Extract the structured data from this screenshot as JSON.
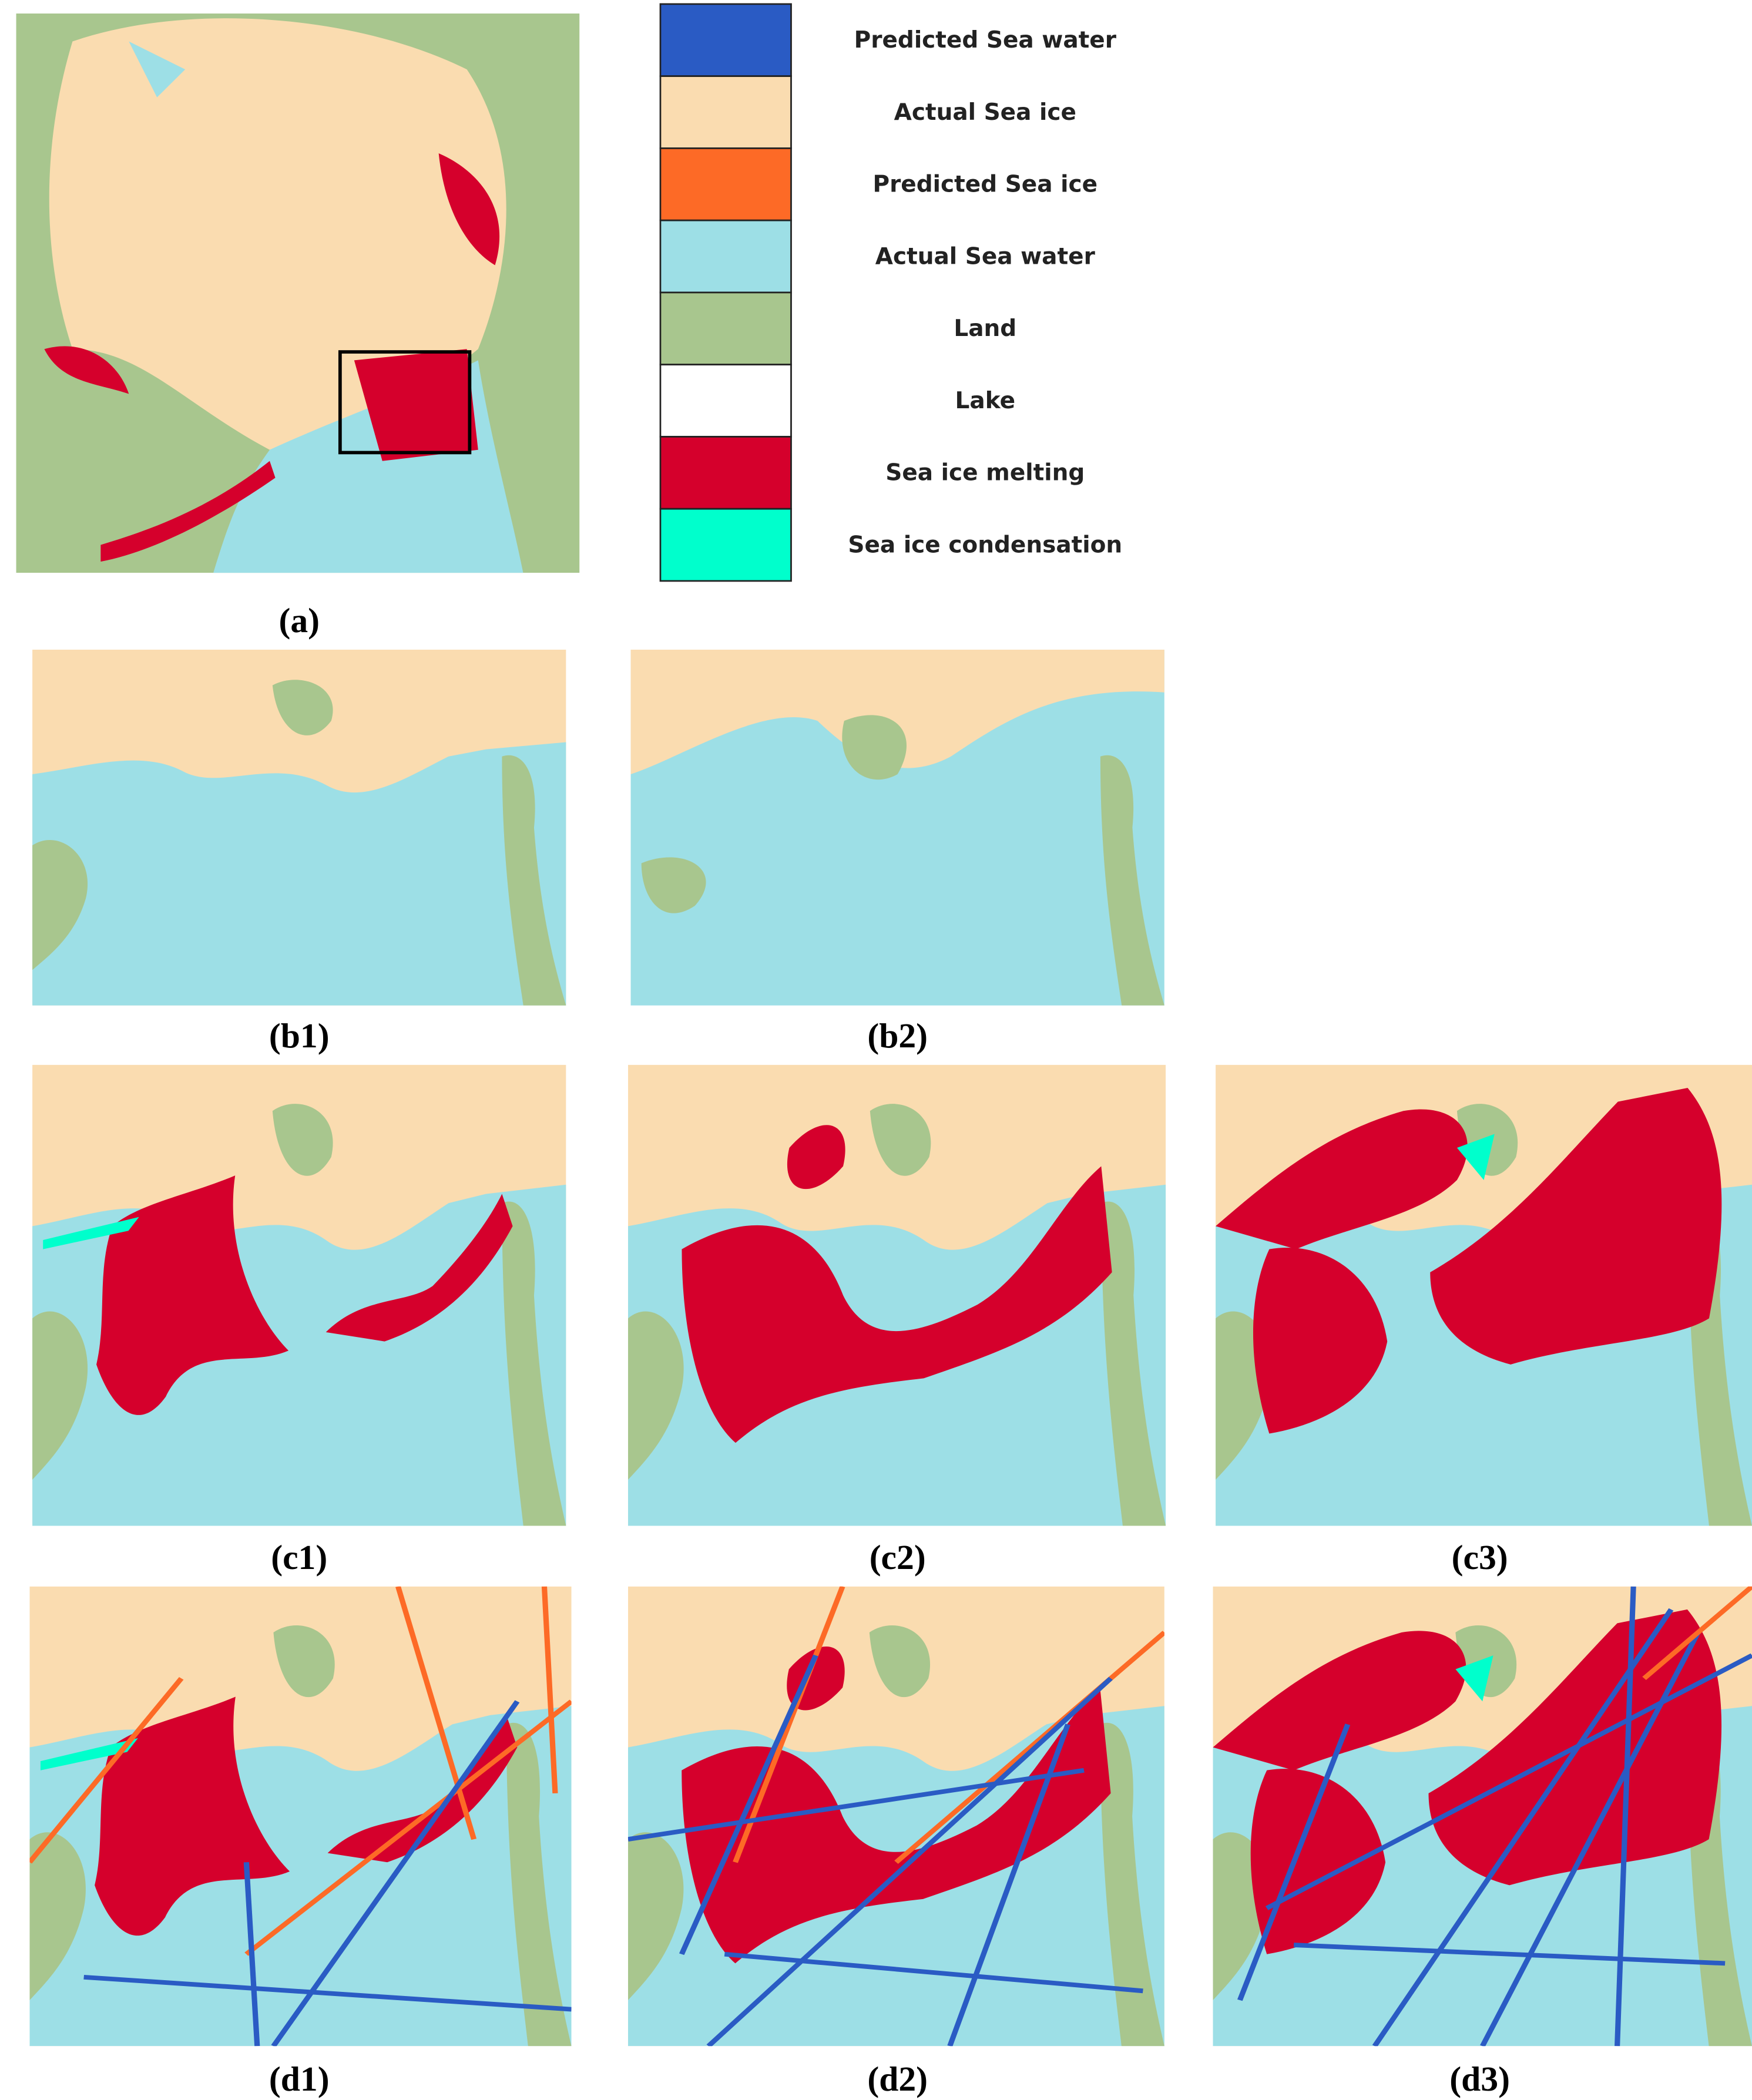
{
  "legend": {
    "items": [
      {
        "label": "Predicted Sea water",
        "color": "#2a5bc4"
      },
      {
        "label": "Actual Sea ice",
        "color": "#fadcb0"
      },
      {
        "label": "Predicted Sea ice",
        "color": "#fd6a26"
      },
      {
        "label": "Actual Sea water",
        "color": "#9ddfe6"
      },
      {
        "label": "Land",
        "color": "#a8c68e"
      },
      {
        "label": "Lake",
        "color": "#ffffff"
      },
      {
        "label": "Sea ice melting",
        "color": "#d5002c"
      },
      {
        "label": "Sea ice condensation",
        "color": "#00ffcc"
      }
    ]
  },
  "panels": [
    {
      "label": "(a)"
    },
    {
      "label": "(b1)"
    },
    {
      "label": "(b2)"
    },
    {
      "label": "(c1)"
    },
    {
      "label": "(c2)"
    },
    {
      "label": "(c3)"
    },
    {
      "label": "(d1)"
    },
    {
      "label": "(d2)"
    },
    {
      "label": "(d3)"
    }
  ]
}
